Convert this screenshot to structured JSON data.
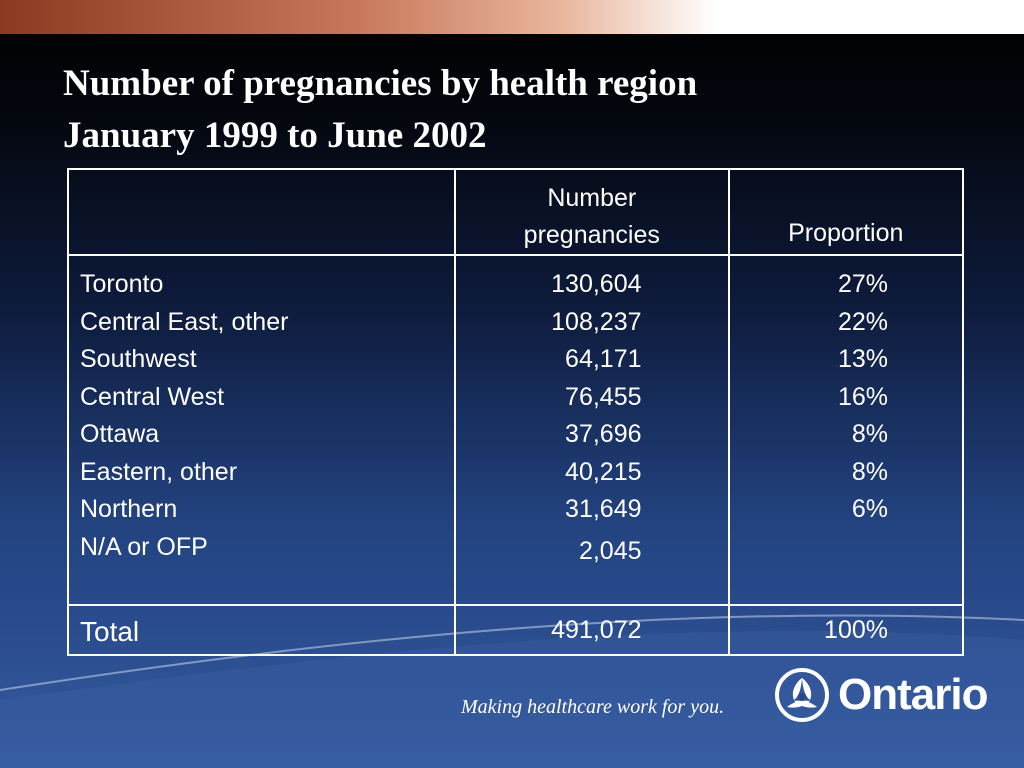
{
  "title": {
    "line1": "Number of pregnancies by health region",
    "line2": "January 1999 to June 2002"
  },
  "table": {
    "headers": {
      "region": "",
      "number_line1": "Number",
      "number_line2": "pregnancies",
      "proportion": "Proportion"
    },
    "rows": [
      {
        "region": "Toronto",
        "number": "130,604",
        "proportion": "27%"
      },
      {
        "region": "Central East, other",
        "number": "108,237",
        "proportion": "22%"
      },
      {
        "region": "Southwest",
        "number": "64,171",
        "proportion": "13%"
      },
      {
        "region": "Central West",
        "number": "76,455",
        "proportion": "16%"
      },
      {
        "region": "Ottawa",
        "number": "37,696",
        "proportion": "8%"
      },
      {
        "region": "Eastern, other",
        "number": "40,215",
        "proportion": "8%"
      },
      {
        "region": "Northern",
        "number": "31,649",
        "proportion": "6%"
      },
      {
        "region": "N/A or OFP",
        "number": "2,045",
        "proportion": ""
      }
    ],
    "total": {
      "label": "Total",
      "number": "491,072",
      "proportion": "100%"
    }
  },
  "footer": {
    "tagline": "Making healthcare work for you.",
    "brand": "Ontario",
    "logo_icon": "ontario-trillium-icon"
  },
  "colors": {
    "background_top": "#000000",
    "background_bottom": "#355aa0",
    "accent_band": "#c8785a",
    "text": "#ffffff"
  }
}
